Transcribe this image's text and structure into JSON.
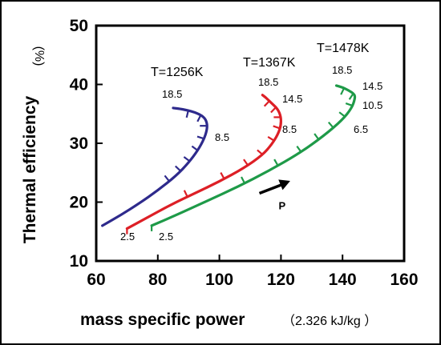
{
  "chart_data": {
    "type": "line",
    "xlabel": "mass specific power",
    "xunit": "（2.326  kJ/kg ）",
    "ylabel": "Thermal efficiency",
    "yunit": "(%)",
    "xlim": [
      60,
      160
    ],
    "ylim": [
      10,
      50
    ],
    "xticks": [
      "60",
      "80",
      "100",
      "120",
      "140",
      "160"
    ],
    "yticks": [
      "10",
      "20",
      "30",
      "40",
      "50"
    ],
    "grid": false,
    "legend": "none",
    "annotation": {
      "text": "P",
      "arrow_from": [
        113,
        21.5
      ],
      "arrow_to": [
        123,
        23.6
      ],
      "color": "#000000"
    },
    "series": [
      {
        "name": "T=1256K",
        "color": "#2e2a8c",
        "x": [
          62,
          68,
          74,
          80,
          86,
          90,
          93,
          95,
          96,
          96,
          95,
          92,
          88,
          85
        ],
        "y": [
          16,
          17.8,
          19.8,
          22,
          24.5,
          26.7,
          28.8,
          30.7,
          32.3,
          33.5,
          34.5,
          35.3,
          35.8,
          36
        ],
        "pressure_ratio_labels": [
          "18.5",
          "8.5"
        ]
      },
      {
        "name": "T=1367K",
        "color": "#dd1f26",
        "x": [
          70,
          76,
          84,
          92,
          100,
          108,
          114,
          117,
          119,
          120,
          120,
          119,
          117,
          116,
          115,
          114
        ],
        "y": [
          15.5,
          17.2,
          19.5,
          21.5,
          23.5,
          25.8,
          28,
          29.8,
          31.5,
          33,
          34.5,
          35.8,
          36.8,
          37.3,
          37.8,
          38.2
        ],
        "pressure_ratio_labels": [
          "18.5",
          "14.5",
          "8.5",
          "2.5"
        ]
      },
      {
        "name": "T=1478K",
        "color": "#1e9a48",
        "x": [
          78,
          86,
          96,
          106,
          116,
          126,
          134,
          140,
          143,
          144,
          144,
          142,
          140,
          138
        ],
        "y": [
          16,
          17.8,
          20.2,
          22.6,
          25.3,
          28.3,
          31.3,
          34,
          36,
          37.5,
          38.3,
          39,
          39.5,
          39.8
        ],
        "pressure_ratio_labels": [
          "18.5",
          "14.5",
          "10.5",
          "6.5",
          "2.5"
        ]
      }
    ]
  }
}
